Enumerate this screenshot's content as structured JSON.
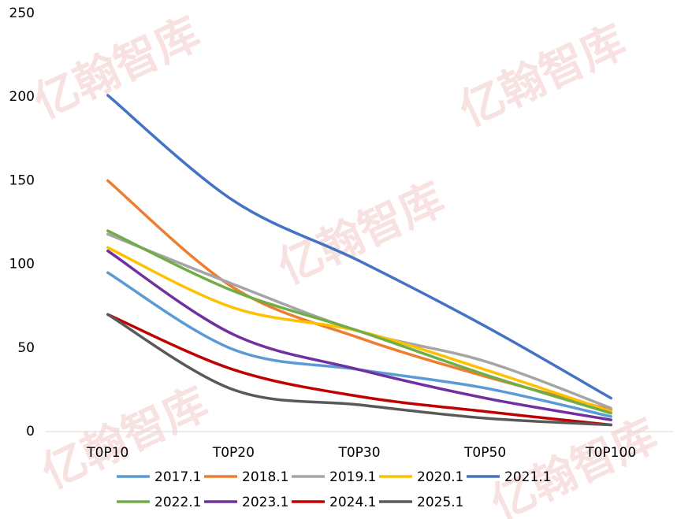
{
  "chart_data": {
    "type": "line",
    "smooth": true,
    "grid": false,
    "watermark": "亿翰智库",
    "categories": [
      "T0P10",
      "T0P20",
      "T0P30",
      "T0P50",
      "T0P100"
    ],
    "ylim": [
      0,
      250
    ],
    "yticks": [
      0,
      50,
      100,
      150,
      200,
      250
    ],
    "series": [
      {
        "name": "2017.1",
        "color": "#5b9bd5",
        "values": [
          95,
          49,
          37,
          26,
          9
        ]
      },
      {
        "name": "2018.1",
        "color": "#ed7d31",
        "values": [
          150,
          86,
          56,
          33,
          13
        ]
      },
      {
        "name": "2019.1",
        "color": "#a5a5a5",
        "values": [
          118,
          88,
          60,
          42,
          14
        ]
      },
      {
        "name": "2020.1",
        "color": "#ffc000",
        "values": [
          110,
          74,
          60,
          37,
          12
        ]
      },
      {
        "name": "2021.1",
        "color": "#4472c4",
        "values": [
          201,
          138,
          102,
          63,
          20
        ]
      },
      {
        "name": "2022.1",
        "color": "#70ad47",
        "values": [
          120,
          84,
          60,
          34,
          11
        ]
      },
      {
        "name": "2023.1",
        "color": "#7030a0",
        "values": [
          108,
          58,
          37,
          20,
          7
        ]
      },
      {
        "name": "2024.1",
        "color": "#c00000",
        "values": [
          70,
          37,
          21,
          12,
          4
        ]
      },
      {
        "name": "2025.1",
        "color": "#595959",
        "values": [
          70,
          25,
          16,
          8,
          4
        ]
      }
    ]
  }
}
